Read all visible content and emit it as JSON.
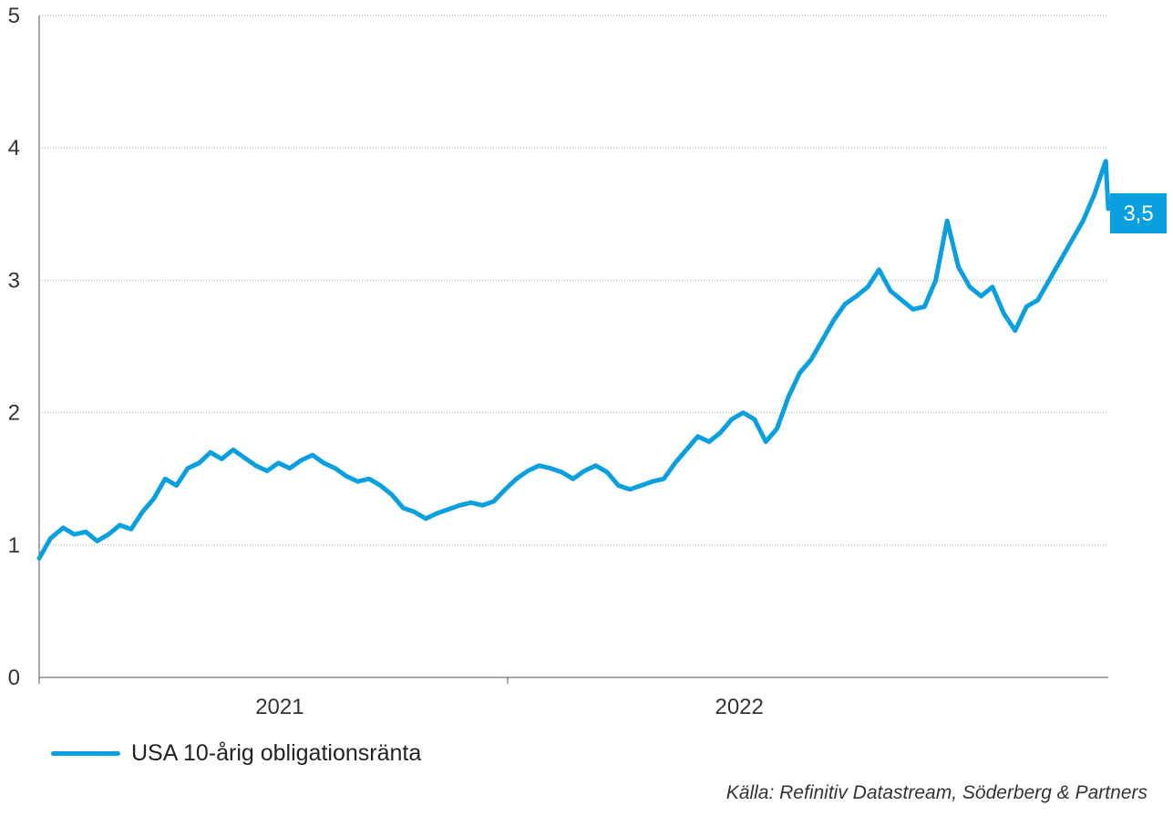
{
  "chart_data": {
    "type": "line",
    "title": "",
    "xlabel": "",
    "ylabel": "",
    "x_range": [
      "2020-06-24",
      "2022-10-21"
    ],
    "ylim": [
      0,
      5
    ],
    "yticks": [
      "0",
      "1",
      "2",
      "3",
      "4",
      "5"
    ],
    "xticks": [
      {
        "date": "2021-01-01",
        "label": "2021",
        "is_label": true
      },
      {
        "date": "2021-07-01",
        "label": "",
        "is_label": false
      },
      {
        "date": "2022-01-01",
        "label": "2022",
        "is_label": true
      }
    ],
    "grid": "horizontal dotted",
    "legend_position": "bottom-left",
    "end_label": "3,5",
    "series": [
      {
        "name": "USA 10-årig obligationsränta",
        "color": "#0aa0e0",
        "points": [
          [
            "2020-06-24",
            0.9
          ],
          [
            "2020-07-03",
            1.05
          ],
          [
            "2020-07-13",
            1.13
          ],
          [
            "2020-07-22",
            1.08
          ],
          [
            "2020-07-31",
            1.1
          ],
          [
            "2020-08-09",
            1.03
          ],
          [
            "2020-08-18",
            1.08
          ],
          [
            "2020-08-27",
            1.15
          ],
          [
            "2020-09-05",
            1.12
          ],
          [
            "2020-09-14",
            1.25
          ],
          [
            "2020-09-23",
            1.35
          ],
          [
            "2020-10-02",
            1.5
          ],
          [
            "2020-10-11",
            1.45
          ],
          [
            "2020-10-20",
            1.58
          ],
          [
            "2020-10-29",
            1.62
          ],
          [
            "2020-11-07",
            1.7
          ],
          [
            "2020-11-16",
            1.65
          ],
          [
            "2020-11-25",
            1.72
          ],
          [
            "2020-12-04",
            1.66
          ],
          [
            "2020-12-13",
            1.6
          ],
          [
            "2020-12-22",
            1.56
          ],
          [
            "2020-12-31",
            1.62
          ],
          [
            "2021-01-09",
            1.58
          ],
          [
            "2021-01-18",
            1.64
          ],
          [
            "2021-01-27",
            1.68
          ],
          [
            "2021-02-05",
            1.62
          ],
          [
            "2021-02-14",
            1.58
          ],
          [
            "2021-02-23",
            1.52
          ],
          [
            "2021-03-04",
            1.48
          ],
          [
            "2021-03-13",
            1.5
          ],
          [
            "2021-03-22",
            1.45
          ],
          [
            "2021-03-31",
            1.38
          ],
          [
            "2021-04-09",
            1.28
          ],
          [
            "2021-04-18",
            1.25
          ],
          [
            "2021-04-27",
            1.2
          ],
          [
            "2021-05-06",
            1.24
          ],
          [
            "2021-05-15",
            1.27
          ],
          [
            "2021-05-24",
            1.3
          ],
          [
            "2021-06-02",
            1.32
          ],
          [
            "2021-06-11",
            1.3
          ],
          [
            "2021-06-20",
            1.33
          ],
          [
            "2021-06-29",
            1.42
          ],
          [
            "2021-07-08",
            1.5
          ],
          [
            "2021-07-17",
            1.56
          ],
          [
            "2021-07-26",
            1.6
          ],
          [
            "2021-08-04",
            1.58
          ],
          [
            "2021-08-13",
            1.55
          ],
          [
            "2021-08-22",
            1.5
          ],
          [
            "2021-08-31",
            1.56
          ],
          [
            "2021-09-09",
            1.6
          ],
          [
            "2021-09-18",
            1.55
          ],
          [
            "2021-09-27",
            1.45
          ],
          [
            "2021-10-06",
            1.42
          ],
          [
            "2021-10-15",
            1.45
          ],
          [
            "2021-10-24",
            1.48
          ],
          [
            "2021-11-02",
            1.5
          ],
          [
            "2021-11-11",
            1.62
          ],
          [
            "2021-11-20",
            1.72
          ],
          [
            "2021-11-29",
            1.82
          ],
          [
            "2021-12-08",
            1.78
          ],
          [
            "2021-12-17",
            1.85
          ],
          [
            "2021-12-26",
            1.95
          ],
          [
            "2022-01-04",
            2.0
          ],
          [
            "2022-01-13",
            1.95
          ],
          [
            "2022-01-22",
            1.78
          ],
          [
            "2022-01-31",
            1.88
          ],
          [
            "2022-02-09",
            2.12
          ],
          [
            "2022-02-18",
            2.3
          ],
          [
            "2022-02-27",
            2.4
          ],
          [
            "2022-03-08",
            2.55
          ],
          [
            "2022-03-17",
            2.7
          ],
          [
            "2022-03-26",
            2.82
          ],
          [
            "2022-04-04",
            2.88
          ],
          [
            "2022-04-13",
            2.95
          ],
          [
            "2022-04-22",
            3.08
          ],
          [
            "2022-05-01",
            2.92
          ],
          [
            "2022-05-10",
            2.85
          ],
          [
            "2022-05-19",
            2.78
          ],
          [
            "2022-05-28",
            2.8
          ],
          [
            "2022-06-06",
            3.0
          ],
          [
            "2022-06-15",
            3.45
          ],
          [
            "2022-06-24",
            3.1
          ],
          [
            "2022-07-03",
            2.95
          ],
          [
            "2022-07-12",
            2.88
          ],
          [
            "2022-07-21",
            2.95
          ],
          [
            "2022-07-30",
            2.75
          ],
          [
            "2022-08-08",
            2.62
          ],
          [
            "2022-08-17",
            2.8
          ],
          [
            "2022-08-26",
            2.85
          ],
          [
            "2022-09-04",
            3.0
          ],
          [
            "2022-09-13",
            3.15
          ],
          [
            "2022-09-22",
            3.3
          ],
          [
            "2022-10-01",
            3.45
          ],
          [
            "2022-10-10",
            3.65
          ],
          [
            "2022-10-19",
            3.9
          ],
          [
            "2022-10-21",
            3.54
          ]
        ]
      }
    ],
    "source": "Källa: Refinitiv Datastream, Söderberg & Partners"
  }
}
